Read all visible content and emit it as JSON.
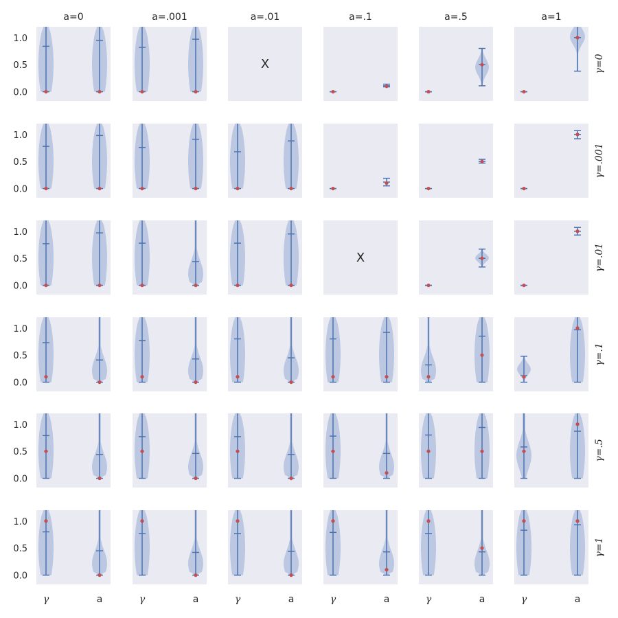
{
  "chart_data": {
    "type": "violin-grid",
    "column_titles": [
      "a=0",
      "a=.001",
      "a=.01",
      "a=.1",
      "a=.5",
      "a=1"
    ],
    "row_titles": [
      "γ=0",
      "γ=.001",
      "γ=.01",
      "γ=.1",
      "γ=.5",
      "γ=1"
    ],
    "x_categories": [
      "γ",
      "a"
    ],
    "y_ticks": [
      "0.0",
      "0.5",
      "1.0"
    ],
    "ylim": [
      -0.17,
      1.2
    ],
    "missing_marker": "X",
    "panels": [
      [
        {
          "g": {
            "median": 0.0,
            "mean": 0.84,
            "max": 1.2,
            "kind": "full",
            "true": 0.0
          },
          "a": {
            "median": 0.0,
            "mean": 0.95,
            "max": 1.2,
            "kind": "full",
            "true": 0.0
          }
        },
        {
          "g": {
            "median": 0.0,
            "mean": 0.82,
            "max": 1.2,
            "kind": "full",
            "true": 0.0
          },
          "a": {
            "median": 0.0,
            "mean": 0.97,
            "max": 1.2,
            "kind": "full",
            "true": 0.0
          }
        },
        null,
        {
          "g": {
            "median": 0.0,
            "mean": 0.0,
            "max": 0.0,
            "kind": "point",
            "true": 0.0
          },
          "a": {
            "median": 0.09,
            "mean": 0.11,
            "max": 0.14,
            "kind": "narrow",
            "true": 0.1
          }
        },
        {
          "g": {
            "median": 0.0,
            "mean": 0.0,
            "max": 0.0,
            "kind": "point",
            "true": 0.0
          },
          "a": {
            "median": 0.11,
            "mean": 0.5,
            "max": 0.8,
            "kind": "bulb",
            "true": 0.5
          }
        },
        {
          "g": {
            "median": 0.0,
            "mean": 0.0,
            "max": 0.0,
            "kind": "point",
            "true": 0.0
          },
          "a": {
            "median": 0.38,
            "mean": 1.0,
            "max": 1.2,
            "kind": "top",
            "true": 1.0
          }
        }
      ],
      [
        {
          "g": {
            "median": 0.0,
            "mean": 0.78,
            "max": 1.2,
            "kind": "full",
            "true": 0.0
          },
          "a": {
            "median": 0.0,
            "mean": 0.98,
            "max": 1.2,
            "kind": "full",
            "true": 0.0
          }
        },
        {
          "g": {
            "median": 0.0,
            "mean": 0.76,
            "max": 1.2,
            "kind": "full",
            "true": 0.0
          },
          "a": {
            "median": 0.0,
            "mean": 0.91,
            "max": 1.2,
            "kind": "full",
            "true": 0.0
          }
        },
        {
          "g": {
            "median": 0.0,
            "mean": 0.68,
            "max": 1.2,
            "kind": "full",
            "true": 0.0
          },
          "a": {
            "median": 0.0,
            "mean": 0.88,
            "max": 1.2,
            "kind": "full",
            "true": 0.0
          }
        },
        {
          "g": {
            "median": 0.0,
            "mean": 0.0,
            "max": 0.0,
            "kind": "point",
            "true": 0.0
          },
          "a": {
            "median": 0.05,
            "mean": 0.12,
            "max": 0.19,
            "kind": "narrow",
            "true": 0.1
          }
        },
        {
          "g": {
            "median": 0.0,
            "mean": 0.0,
            "max": 0.0,
            "kind": "point",
            "true": 0.0
          },
          "a": {
            "median": 0.47,
            "mean": 0.5,
            "max": 0.54,
            "kind": "narrow",
            "true": 0.5
          }
        },
        {
          "g": {
            "median": 0.0,
            "mean": 0.0,
            "max": 0.0,
            "kind": "point",
            "true": 0.0
          },
          "a": {
            "median": 0.92,
            "mean": 1.0,
            "max": 1.07,
            "kind": "narrow",
            "true": 1.0
          }
        }
      ],
      [
        {
          "g": {
            "median": 0.0,
            "mean": 0.77,
            "max": 1.2,
            "kind": "full",
            "true": 0.0
          },
          "a": {
            "median": 0.0,
            "mean": 0.97,
            "max": 1.2,
            "kind": "full",
            "true": 0.0
          }
        },
        {
          "g": {
            "median": 0.0,
            "mean": 0.78,
            "max": 1.2,
            "kind": "full",
            "true": 0.0
          },
          "a": {
            "median": 0.0,
            "mean": 0.44,
            "max": 1.2,
            "kind": "low",
            "true": 0.0
          }
        },
        {
          "g": {
            "median": 0.0,
            "mean": 0.78,
            "max": 1.2,
            "kind": "full",
            "true": 0.0
          },
          "a": {
            "median": 0.0,
            "mean": 0.95,
            "max": 1.2,
            "kind": "full",
            "true": 0.0
          }
        },
        null,
        {
          "g": {
            "median": 0.0,
            "mean": 0.0,
            "max": 0.0,
            "kind": "point",
            "true": 0.0
          },
          "a": {
            "median": 0.34,
            "mean": 0.5,
            "max": 0.67,
            "kind": "bulb",
            "true": 0.5
          }
        },
        {
          "g": {
            "median": 0.0,
            "mean": 0.0,
            "max": 0.0,
            "kind": "point",
            "true": 0.0
          },
          "a": {
            "median": 0.93,
            "mean": 1.0,
            "max": 1.07,
            "kind": "narrow",
            "true": 1.0
          }
        }
      ],
      [
        {
          "g": {
            "median": 0.0,
            "mean": 0.73,
            "max": 1.2,
            "kind": "full",
            "true": 0.1
          },
          "a": {
            "median": 0.0,
            "mean": 0.41,
            "max": 1.2,
            "kind": "low",
            "true": 0.0
          }
        },
        {
          "g": {
            "median": 0.0,
            "mean": 0.77,
            "max": 1.2,
            "kind": "full",
            "true": 0.1
          },
          "a": {
            "median": 0.0,
            "mean": 0.43,
            "max": 1.2,
            "kind": "low",
            "true": 0.0
          }
        },
        {
          "g": {
            "median": 0.0,
            "mean": 0.8,
            "max": 1.2,
            "kind": "full",
            "true": 0.1
          },
          "a": {
            "median": 0.0,
            "mean": 0.45,
            "max": 1.2,
            "kind": "low",
            "true": 0.0
          }
        },
        {
          "g": {
            "median": 0.0,
            "mean": 0.8,
            "max": 1.2,
            "kind": "full",
            "true": 0.1
          },
          "a": {
            "median": 0.0,
            "mean": 0.92,
            "max": 1.2,
            "kind": "full",
            "true": 0.1
          }
        },
        {
          "g": {
            "median": 0.0,
            "mean": 0.32,
            "max": 1.2,
            "kind": "low",
            "true": 0.1
          },
          "a": {
            "median": 0.0,
            "mean": 0.85,
            "max": 1.2,
            "kind": "full",
            "true": 0.5
          }
        },
        {
          "g": {
            "median": 0.0,
            "mean": 0.12,
            "max": 0.48,
            "kind": "bulb",
            "true": 0.1
          },
          "a": {
            "median": 0.0,
            "mean": 0.97,
            "max": 1.2,
            "kind": "full",
            "true": 1.0
          }
        }
      ],
      [
        {
          "g": {
            "median": 0.0,
            "mean": 0.79,
            "max": 1.2,
            "kind": "full",
            "true": 0.5
          },
          "a": {
            "median": 0.0,
            "mean": 0.44,
            "max": 1.2,
            "kind": "low",
            "true": 0.0
          }
        },
        {
          "g": {
            "median": 0.0,
            "mean": 0.77,
            "max": 1.2,
            "kind": "full",
            "true": 0.5
          },
          "a": {
            "median": 0.0,
            "mean": 0.46,
            "max": 1.2,
            "kind": "low",
            "true": 0.0
          }
        },
        {
          "g": {
            "median": 0.0,
            "mean": 0.77,
            "max": 1.2,
            "kind": "full",
            "true": 0.5
          },
          "a": {
            "median": 0.0,
            "mean": 0.44,
            "max": 1.2,
            "kind": "low",
            "true": 0.0
          }
        },
        {
          "g": {
            "median": 0.0,
            "mean": 0.78,
            "max": 1.2,
            "kind": "full",
            "true": 0.5
          },
          "a": {
            "median": 0.0,
            "mean": 0.46,
            "max": 1.2,
            "kind": "low",
            "true": 0.1
          }
        },
        {
          "g": {
            "median": 0.0,
            "mean": 0.8,
            "max": 1.2,
            "kind": "full",
            "true": 0.5
          },
          "a": {
            "median": 0.0,
            "mean": 0.94,
            "max": 1.2,
            "kind": "full",
            "true": 0.5
          }
        },
        {
          "g": {
            "median": 0.0,
            "mean": 0.58,
            "max": 1.2,
            "kind": "mid",
            "true": 0.5
          },
          "a": {
            "median": 0.0,
            "mean": 0.87,
            "max": 1.2,
            "kind": "full",
            "true": 1.0
          }
        }
      ],
      [
        {
          "g": {
            "median": 0.0,
            "mean": 0.8,
            "max": 1.2,
            "kind": "full",
            "true": 1.0
          },
          "a": {
            "median": 0.0,
            "mean": 0.45,
            "max": 1.2,
            "kind": "low",
            "true": 0.0
          }
        },
        {
          "g": {
            "median": 0.0,
            "mean": 0.77,
            "max": 1.2,
            "kind": "full",
            "true": 1.0
          },
          "a": {
            "median": 0.0,
            "mean": 0.42,
            "max": 1.2,
            "kind": "low",
            "true": 0.0
          }
        },
        {
          "g": {
            "median": 0.0,
            "mean": 0.77,
            "max": 1.2,
            "kind": "full",
            "true": 1.0
          },
          "a": {
            "median": 0.0,
            "mean": 0.44,
            "max": 1.2,
            "kind": "low",
            "true": 0.0
          }
        },
        {
          "g": {
            "median": 0.0,
            "mean": 0.79,
            "max": 1.2,
            "kind": "full",
            "true": 1.0
          },
          "a": {
            "median": 0.0,
            "mean": 0.43,
            "max": 1.2,
            "kind": "low",
            "true": 0.1
          }
        },
        {
          "g": {
            "median": 0.0,
            "mean": 0.77,
            "max": 1.2,
            "kind": "full",
            "true": 1.0
          },
          "a": {
            "median": 0.0,
            "mean": 0.43,
            "max": 1.2,
            "kind": "low",
            "true": 0.5
          }
        },
        {
          "g": {
            "median": 0.0,
            "mean": 0.83,
            "max": 1.2,
            "kind": "full",
            "true": 1.0
          },
          "a": {
            "median": 0.0,
            "mean": 0.93,
            "max": 1.2,
            "kind": "full",
            "true": 1.0
          }
        }
      ]
    ]
  },
  "colors": {
    "panel_bg": "#eaeaf2",
    "violin_fill": "#b4c2df",
    "line": "#4c72b0",
    "true_dot": "#c44e52",
    "text": "#262626"
  }
}
